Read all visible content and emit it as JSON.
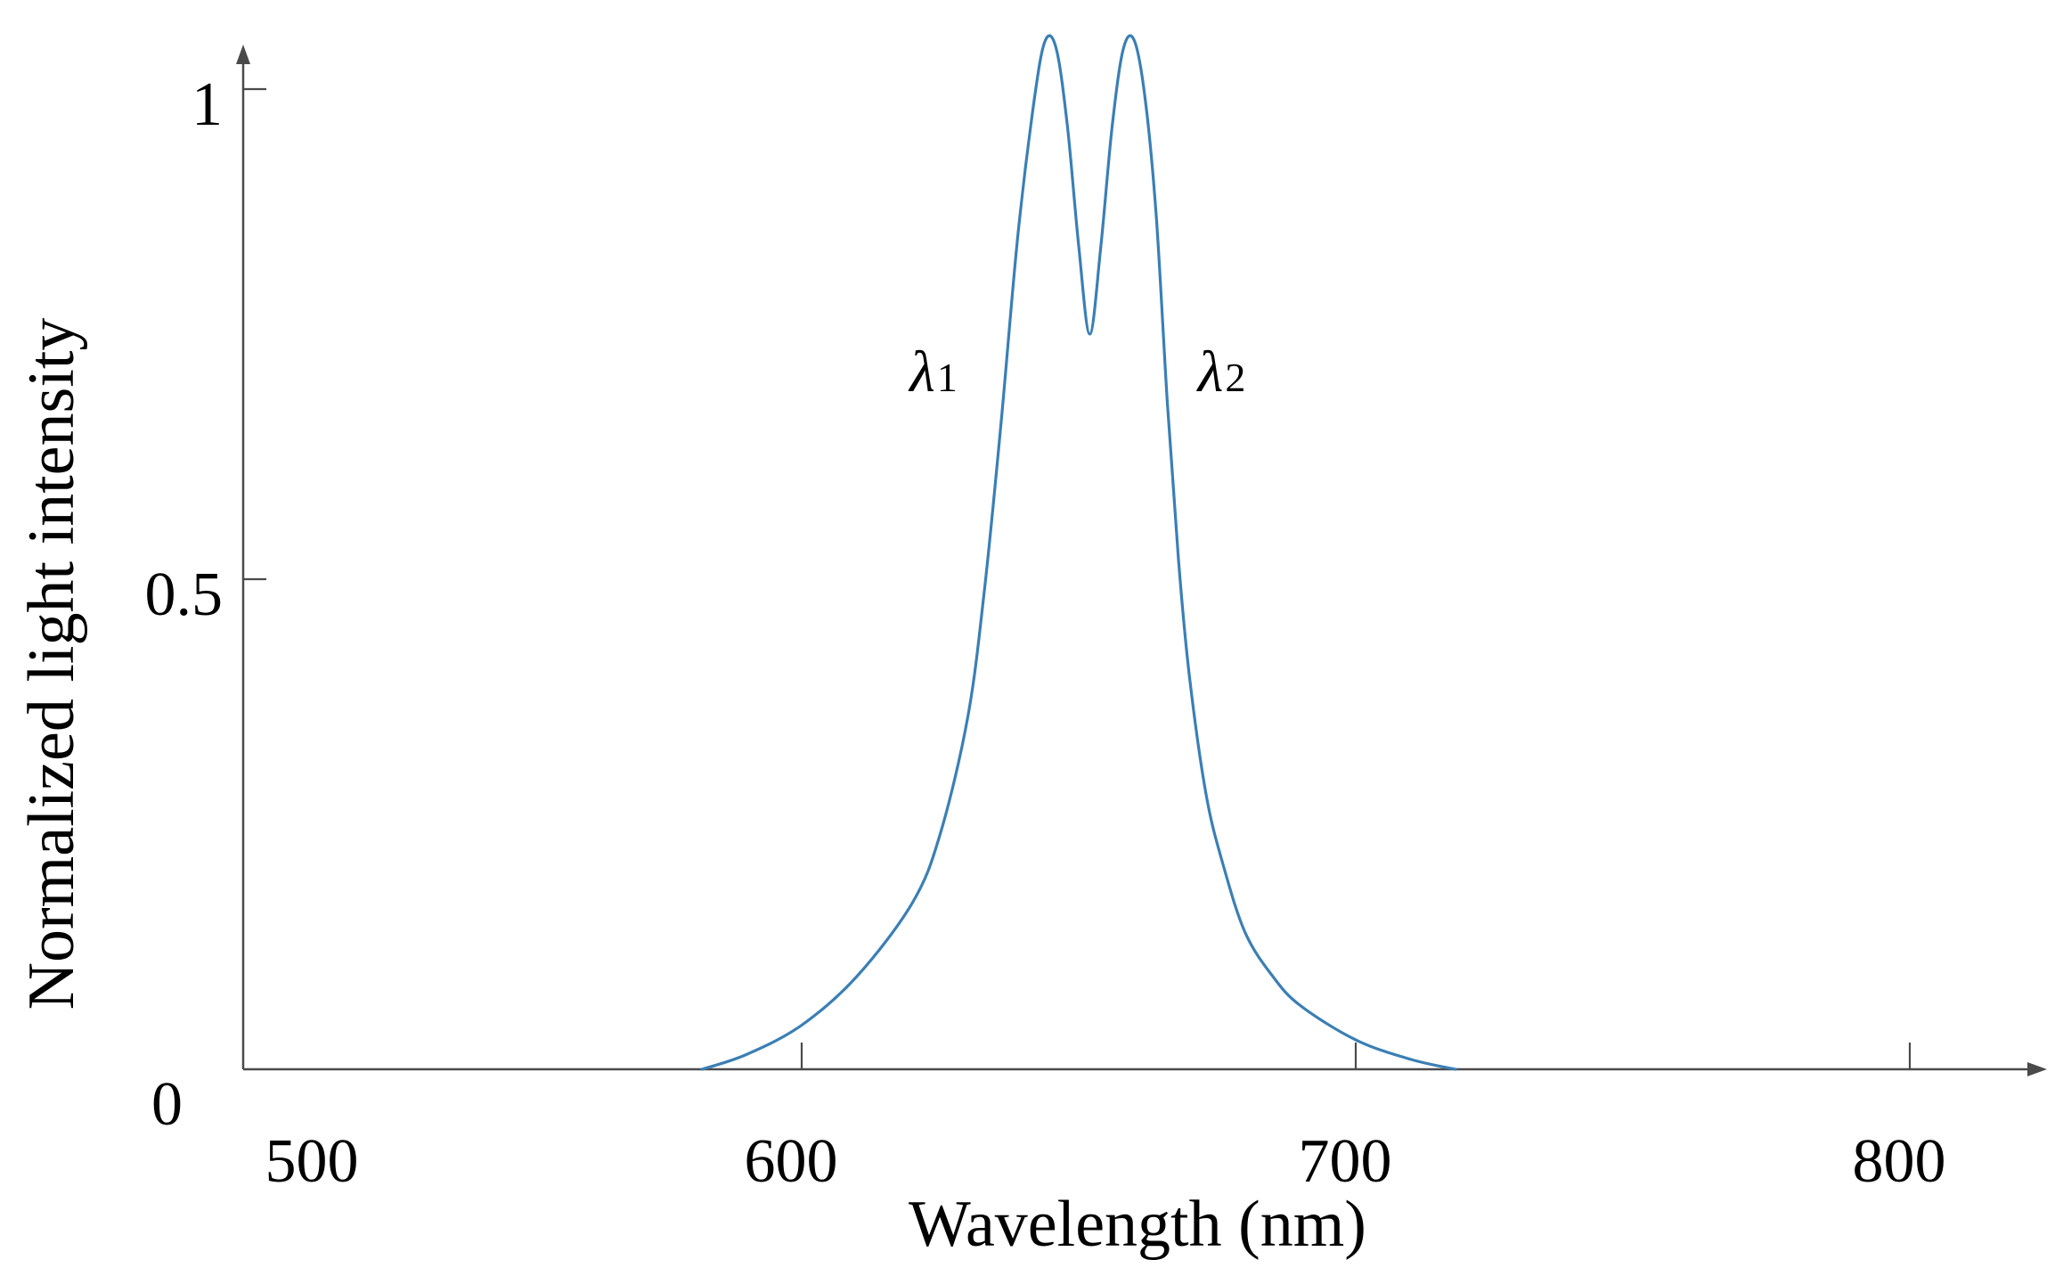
{
  "chart_data": {
    "type": "line",
    "title": "",
    "xlabel": "Wavelength (nm)",
    "ylabel": "Normalized light intensity",
    "xlim": [
      500,
      830
    ],
    "ylim": [
      0,
      1.05
    ],
    "x_ticks": [
      500,
      600,
      700,
      800
    ],
    "x_tick_labels": [
      "500",
      "600",
      "700",
      "800"
    ],
    "y_ticks": [
      0,
      0.5,
      1
    ],
    "y_tick_labels": [
      "0",
      "0.5",
      "1"
    ],
    "grid": false,
    "legend": "none",
    "line_color": "#3a7fb5",
    "annotations": [
      {
        "symbol": "λ",
        "subscript": "1",
        "x": 624,
        "y": 0.71
      },
      {
        "symbol": "λ",
        "subscript": "2",
        "x": 676,
        "y": 0.71
      }
    ],
    "series": [
      {
        "x": [
          582,
          590,
          600,
          610,
          620,
          625,
          630,
          633,
          636,
          639,
          642,
          644,
          646,
          648,
          650,
          652,
          654,
          656,
          658,
          660,
          662,
          664,
          666,
          668,
          670,
          673,
          676,
          680,
          685,
          690,
          700,
          710,
          718
        ],
        "y": [
          0,
          0.015,
          0.045,
          0.095,
          0.17,
          0.24,
          0.36,
          0.49,
          0.66,
          0.85,
          0.99,
          1.05,
          1.04,
          0.96,
          0.84,
          0.75,
          0.84,
          0.96,
          1.04,
          1.05,
          0.99,
          0.87,
          0.68,
          0.52,
          0.4,
          0.28,
          0.21,
          0.14,
          0.095,
          0.065,
          0.03,
          0.01,
          0
        ]
      }
    ]
  }
}
